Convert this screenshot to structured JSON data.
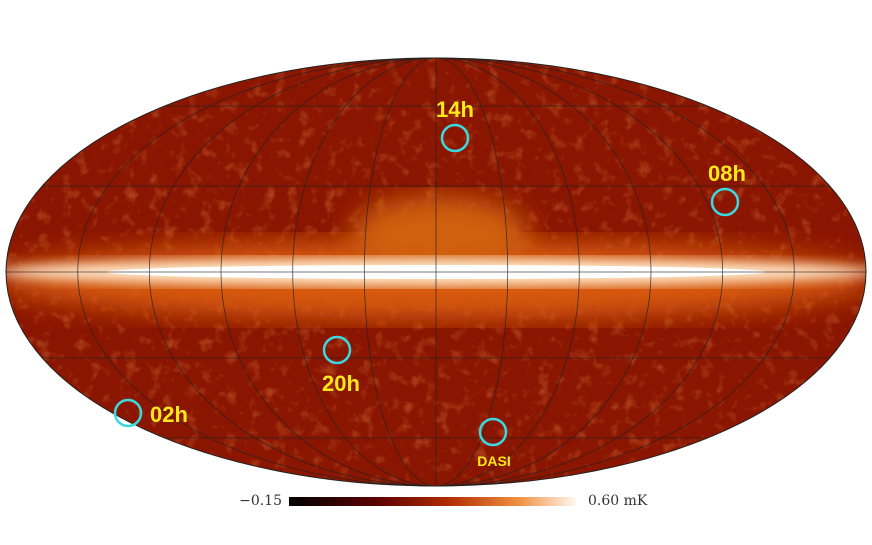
{
  "fields": [
    {
      "label": "14h"
    },
    {
      "label": "08h"
    },
    {
      "label": "20h"
    },
    {
      "label": "02h"
    },
    {
      "label": "DASI"
    }
  ],
  "colorbar": {
    "min_label": "−0.15",
    "max_label": "0.60 mK"
  }
}
